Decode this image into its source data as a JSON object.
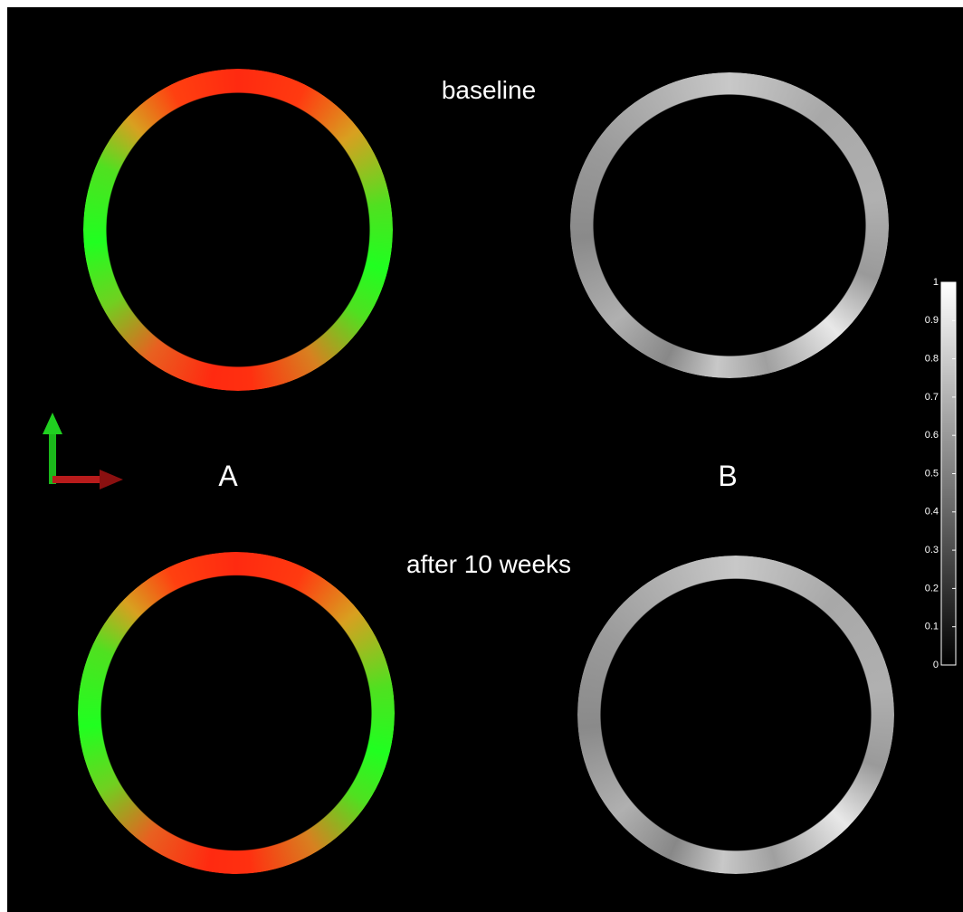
{
  "labels": {
    "top": "baseline",
    "bottom": "after 10 weeks",
    "left": "A",
    "right": "B"
  },
  "colorbar": {
    "lim": [
      0,
      1
    ],
    "ticks": [
      0,
      0.1,
      0.2,
      0.3,
      0.4,
      0.5,
      0.6,
      0.7,
      0.8,
      0.9,
      1
    ]
  }
}
